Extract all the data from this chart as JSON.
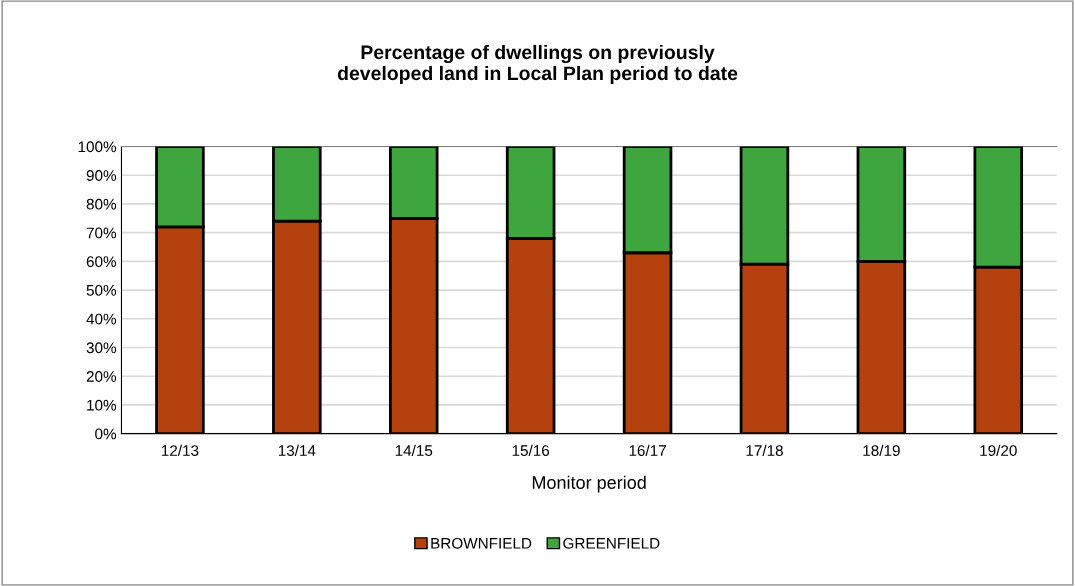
{
  "chart_data": {
    "type": "bar",
    "title": "Percentage of dwellings on previously\ndeveloped land in Local Plan period to date",
    "xlabel": "Monitor period",
    "categories": [
      "12/13",
      "13/14",
      "14/15",
      "15/16",
      "16/17",
      "17/18",
      "18/19",
      "19/20"
    ],
    "stacked": true,
    "series": [
      {
        "name": "BROWNFIELD",
        "color": "#b5410f",
        "values": [
          72,
          74,
          75,
          68,
          63,
          59,
          60,
          58
        ]
      },
      {
        "name": "GREENFIELD",
        "color": "#3fa63f",
        "values": [
          28,
          26,
          25,
          32,
          37,
          41,
          40,
          42
        ]
      }
    ],
    "ylim": [
      0,
      100
    ],
    "yticks": [
      {
        "value": 0,
        "label": "0%"
      },
      {
        "value": 10,
        "label": "10%"
      },
      {
        "value": 20,
        "label": "20%"
      },
      {
        "value": 30,
        "label": "30%"
      },
      {
        "value": 40,
        "label": "40%"
      },
      {
        "value": 50,
        "label": "50%"
      },
      {
        "value": 60,
        "label": "60%"
      },
      {
        "value": 70,
        "label": "70%"
      },
      {
        "value": 80,
        "label": "80%"
      },
      {
        "value": 90,
        "label": "90%"
      },
      {
        "value": 100,
        "label": "100%"
      }
    ],
    "grid": "y",
    "legend": "bottom"
  }
}
